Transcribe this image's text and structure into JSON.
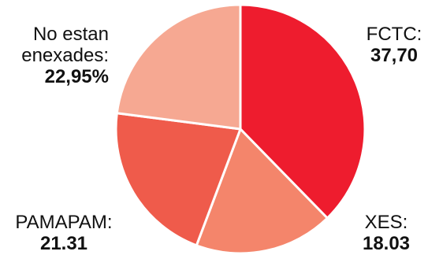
{
  "chart_data": {
    "type": "pie",
    "title": "",
    "start_angle_deg": 0,
    "direction": "clockwise",
    "slices": [
      {
        "name_lines": [
          "FCTC:"
        ],
        "value_label": "37,70",
        "value": 37.7,
        "color": "#ee1c2e"
      },
      {
        "name_lines": [
          "XES:"
        ],
        "value_label": "18.03",
        "value": 18.03,
        "color": "#f4856b"
      },
      {
        "name_lines": [
          "PAMAPAM:"
        ],
        "value_label": "21.31",
        "value": 21.31,
        "color": "#ef5b4b"
      },
      {
        "name_lines": [
          "No estan",
          "enexades:"
        ],
        "value_label": "22,95%",
        "value": 22.95,
        "color": "#f6a892"
      }
    ]
  }
}
